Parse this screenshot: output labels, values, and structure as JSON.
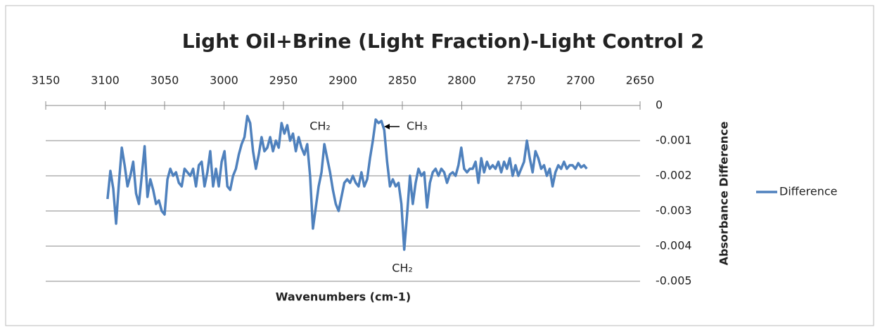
{
  "chart_data": {
    "type": "line",
    "title": "Light Oil+Brine (Light Fraction)-Light Control 2",
    "x_label": "Wavenumbers (cm-1)",
    "y_label": "Absorbance Difference",
    "annotations": [
      "CH₂",
      "CH₃",
      "CH₂"
    ],
    "x": [
      3098.0,
      3095.6,
      3093.2,
      3090.8,
      3088.4,
      3086.0,
      3083.6,
      3081.2,
      3078.8,
      3076.4,
      3074.0,
      3071.6,
      3069.2,
      3066.8,
      3064.4,
      3062.0,
      3059.6,
      3057.2,
      3054.8,
      3052.4,
      3050.0,
      3047.6,
      3045.2,
      3042.8,
      3040.4,
      3038.0,
      3035.6,
      3033.2,
      3030.8,
      3028.4,
      3026.0,
      3023.6,
      3021.2,
      3018.8,
      3016.4,
      3014.0,
      3011.6,
      3009.2,
      3006.8,
      3004.4,
      3002.0,
      2999.6,
      2997.2,
      2994.8,
      2992.4,
      2990.0,
      2987.6,
      2985.2,
      2982.8,
      2980.4,
      2978.0,
      2975.6,
      2973.2,
      2970.8,
      2968.4,
      2966.0,
      2963.6,
      2961.2,
      2958.8,
      2956.4,
      2954.0,
      2951.6,
      2949.2,
      2946.8,
      2944.4,
      2942.0,
      2939.6,
      2937.2,
      2934.8,
      2932.4,
      2930.0,
      2927.6,
      2925.2,
      2922.8,
      2920.4,
      2918.0,
      2915.6,
      2913.2,
      2910.8,
      2908.4,
      2906.0,
      2903.6,
      2901.2,
      2898.8,
      2896.4,
      2894.0,
      2891.6,
      2889.2,
      2886.8,
      2884.4,
      2882.0,
      2879.6,
      2877.2,
      2874.8,
      2872.4,
      2870.0,
      2867.6,
      2865.2,
      2862.8,
      2860.4,
      2858.0,
      2855.6,
      2853.2,
      2850.8,
      2848.4,
      2846.0,
      2843.6,
      2841.2,
      2838.8,
      2836.4,
      2834.0,
      2831.6,
      2829.2,
      2826.8,
      2824.4,
      2822.0,
      2819.6,
      2817.2,
      2814.8,
      2812.4,
      2810.0,
      2807.6,
      2805.2,
      2802.8,
      2800.4,
      2798.0,
      2795.6,
      2793.2,
      2790.8,
      2788.4,
      2786.0,
      2783.6,
      2781.2,
      2778.8,
      2776.4,
      2774.0,
      2771.6,
      2769.2,
      2766.8,
      2764.4,
      2762.0,
      2759.6,
      2757.2,
      2754.8,
      2752.4,
      2750.0,
      2747.6,
      2745.2,
      2742.8,
      2740.4,
      2738.0,
      2735.6,
      2733.2,
      2730.8,
      2728.4,
      2726.0,
      2723.6,
      2721.2,
      2718.8,
      2716.4,
      2714.0,
      2711.6,
      2709.2,
      2706.8,
      2704.4,
      2702.0,
      2699.6,
      2697.2,
      2694.8
    ],
    "series": [
      {
        "name": "Difference",
        "color": "#4f81bd",
        "values": [
          -0.00266,
          -0.00186,
          -0.00236,
          -0.00336,
          -0.0022,
          -0.0012,
          -0.0017,
          -0.0023,
          -0.002,
          -0.0016,
          -0.0025,
          -0.0028,
          -0.002,
          -0.00116,
          -0.0026,
          -0.0021,
          -0.0024,
          -0.0028,
          -0.0027,
          -0.003,
          -0.0031,
          -0.0021,
          -0.0018,
          -0.002,
          -0.0019,
          -0.0022,
          -0.0023,
          -0.0018,
          -0.0019,
          -0.002,
          -0.0018,
          -0.0023,
          -0.0017,
          -0.0016,
          -0.0023,
          -0.0019,
          -0.0013,
          -0.0023,
          -0.0018,
          -0.0023,
          -0.0016,
          -0.0013,
          -0.0023,
          -0.0024,
          -0.002,
          -0.0018,
          -0.0014,
          -0.0011,
          -0.0009,
          -0.0003,
          -0.0005,
          -0.0013,
          -0.0018,
          -0.0014,
          -0.0009,
          -0.0013,
          -0.0012,
          -0.0009,
          -0.0013,
          -0.001,
          -0.0012,
          -0.0005,
          -0.0008,
          -0.00056,
          -0.001,
          -0.0008,
          -0.0013,
          -0.0009,
          -0.0012,
          -0.0014,
          -0.0011,
          -0.002,
          -0.0035,
          -0.0029,
          -0.0023,
          -0.0019,
          -0.0011,
          -0.0015,
          -0.0019,
          -0.0024,
          -0.0028,
          -0.003,
          -0.0026,
          -0.0022,
          -0.0021,
          -0.0022,
          -0.002,
          -0.0022,
          -0.0023,
          -0.0019,
          -0.0023,
          -0.0021,
          -0.0015,
          -0.001,
          -0.0004,
          -0.0005,
          -0.00044,
          -0.0007,
          -0.0016,
          -0.0023,
          -0.0021,
          -0.0023,
          -0.0022,
          -0.0028,
          -0.0041,
          -0.0031,
          -0.002,
          -0.0028,
          -0.0022,
          -0.0018,
          -0.002,
          -0.0019,
          -0.0029,
          -0.0022,
          -0.0019,
          -0.0018,
          -0.002,
          -0.0018,
          -0.0019,
          -0.0022,
          -0.00196,
          -0.0019,
          -0.002,
          -0.0017,
          -0.0012,
          -0.0018,
          -0.0019,
          -0.0018,
          -0.0018,
          -0.0016,
          -0.0022,
          -0.0015,
          -0.0019,
          -0.0016,
          -0.0018,
          -0.0017,
          -0.0018,
          -0.0016,
          -0.0019,
          -0.0016,
          -0.0018,
          -0.0015,
          -0.002,
          -0.0017,
          -0.002,
          -0.0018,
          -0.0016,
          -0.001,
          -0.0015,
          -0.0019,
          -0.0013,
          -0.0015,
          -0.0018,
          -0.0017,
          -0.002,
          -0.0018,
          -0.0023,
          -0.0019,
          -0.0017,
          -0.0018,
          -0.0016,
          -0.0018,
          -0.0017,
          -0.0017,
          -0.0018,
          -0.00164,
          -0.00176,
          -0.0017,
          -0.0018
        ]
      }
    ],
    "xlim": [
      3150,
      2650
    ],
    "xticks": [
      3150,
      3100,
      3050,
      3000,
      2950,
      2900,
      2850,
      2800,
      2750,
      2700,
      2650
    ],
    "ylim": [
      -0.005,
      0
    ],
    "yticks": [
      0,
      -0.001,
      -0.002,
      -0.003,
      -0.004,
      -0.005
    ],
    "grid": true,
    "legend": "right"
  }
}
